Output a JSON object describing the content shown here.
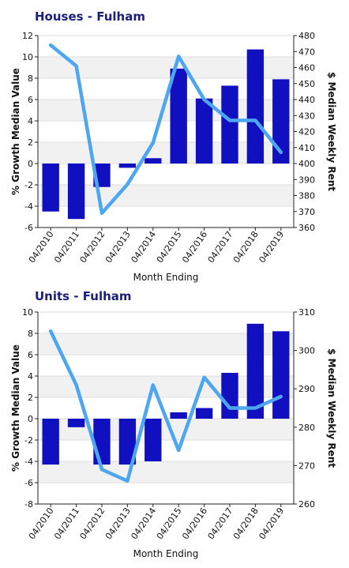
{
  "chart_data": [
    {
      "type": "bar",
      "title": "Houses - Fulham",
      "xlabel": "Month Ending",
      "ylabel": "% Growth Median Value",
      "y2label": "$ Median Weekly Rent",
      "categories": [
        "04/2010",
        "04/2011",
        "04/2012",
        "04/2013",
        "04/2014",
        "04/2015",
        "04/2016",
        "04/2017",
        "04/2018",
        "04/2019"
      ],
      "ylim": [
        -6,
        12
      ],
      "yticks": [
        -6,
        -4,
        -2,
        0,
        2,
        4,
        6,
        8,
        10,
        12
      ],
      "y2lim": [
        360,
        480
      ],
      "y2ticks": [
        360,
        370,
        380,
        390,
        400,
        410,
        420,
        430,
        440,
        450,
        460,
        470,
        480
      ],
      "series": [
        {
          "type": "bar",
          "axis": "left",
          "color": "#1010c0",
          "values": [
            -4.5,
            -5.2,
            -2.2,
            -0.4,
            0.5,
            8.9,
            6.1,
            7.3,
            10.7,
            7.9
          ]
        },
        {
          "type": "line",
          "axis": "right",
          "color": "#4da6f0",
          "values": [
            474,
            461,
            369,
            387,
            413,
            467,
            440,
            427,
            427,
            407
          ]
        }
      ],
      "grid": "horizontal bands"
    },
    {
      "type": "bar",
      "title": "Units - Fulham",
      "xlabel": "Month Ending",
      "ylabel": "% Growth Median Value",
      "y2label": "$ Median Weekly Rent",
      "categories": [
        "04/2010",
        "04/2011",
        "04/2012",
        "04/2013",
        "04/2014",
        "04/2015",
        "04/2016",
        "04/2017",
        "04/2018",
        "04/2019"
      ],
      "ylim": [
        -8,
        10
      ],
      "yticks": [
        -8,
        -6,
        -4,
        -2,
        0,
        2,
        4,
        6,
        8,
        10
      ],
      "y2lim": [
        260,
        310
      ],
      "y2ticks": [
        260,
        270,
        280,
        290,
        300,
        310
      ],
      "series": [
        {
          "type": "bar",
          "axis": "left",
          "color": "#1010c0",
          "values": [
            -4.3,
            -0.8,
            -4.3,
            -4.3,
            -4.0,
            0.6,
            1.0,
            4.3,
            8.9,
            8.2
          ]
        },
        {
          "type": "line",
          "axis": "right",
          "color": "#4da6f0",
          "values": [
            305,
            291,
            269,
            266,
            291,
            274,
            293,
            285,
            285,
            288
          ]
        }
      ],
      "grid": "horizontal bands"
    }
  ]
}
